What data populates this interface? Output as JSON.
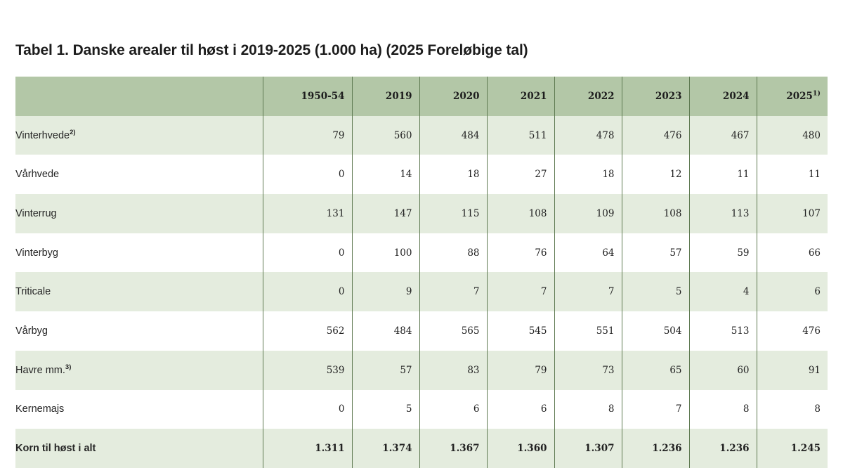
{
  "title": "Tabel 1. Danske arealer til høst i 2019-2025 (1.000 ha) (2025 Foreløbige tal)",
  "table": {
    "header_label": "",
    "columns": [
      {
        "label": "1950-54",
        "sup": ""
      },
      {
        "label": "2019",
        "sup": ""
      },
      {
        "label": "2020",
        "sup": ""
      },
      {
        "label": "2021",
        "sup": ""
      },
      {
        "label": "2022",
        "sup": ""
      },
      {
        "label": "2023",
        "sup": ""
      },
      {
        "label": "2024",
        "sup": ""
      },
      {
        "label": "2025",
        "sup": "1)"
      }
    ],
    "rows": [
      {
        "label": "Vinterhvede",
        "sup": "2)",
        "values": [
          "79",
          "560",
          "484",
          "511",
          "478",
          "476",
          "467",
          "480"
        ]
      },
      {
        "label": "Vårhvede",
        "sup": "",
        "values": [
          "0",
          "14",
          "18",
          "27",
          "18",
          "12",
          "11",
          "11"
        ]
      },
      {
        "label": "Vinterrug",
        "sup": "",
        "values": [
          "131",
          "147",
          "115",
          "108",
          "109",
          "108",
          "113",
          "107"
        ]
      },
      {
        "label": "Vinterbyg",
        "sup": "",
        "values": [
          "0",
          "100",
          "88",
          "76",
          "64",
          "57",
          "59",
          "66"
        ]
      },
      {
        "label": "Triticale",
        "sup": "",
        "values": [
          "0",
          "9",
          "7",
          "7",
          "7",
          "5",
          "4",
          "6"
        ]
      },
      {
        "label": "Vårbyg",
        "sup": "",
        "values": [
          "562",
          "484",
          "565",
          "545",
          "551",
          "504",
          "513",
          "476"
        ]
      },
      {
        "label": "Havre mm.",
        "sup": "3)",
        "values": [
          "539",
          "57",
          "83",
          "79",
          "73",
          "65",
          "60",
          "91"
        ]
      },
      {
        "label": "Kernemajs",
        "sup": "",
        "values": [
          "0",
          "5",
          "6",
          "6",
          "8",
          "7",
          "8",
          "8"
        ]
      }
    ],
    "total": {
      "label": "Korn til høst i alt",
      "values": [
        "1.311",
        "1.374",
        "1.367",
        "1.360",
        "1.307",
        "1.236",
        "1.236",
        "1.245"
      ]
    }
  },
  "colors": {
    "header_bg": "#b3c7a7",
    "shaded_row_bg": "#e4ecde",
    "divider": "#5f7a52"
  }
}
